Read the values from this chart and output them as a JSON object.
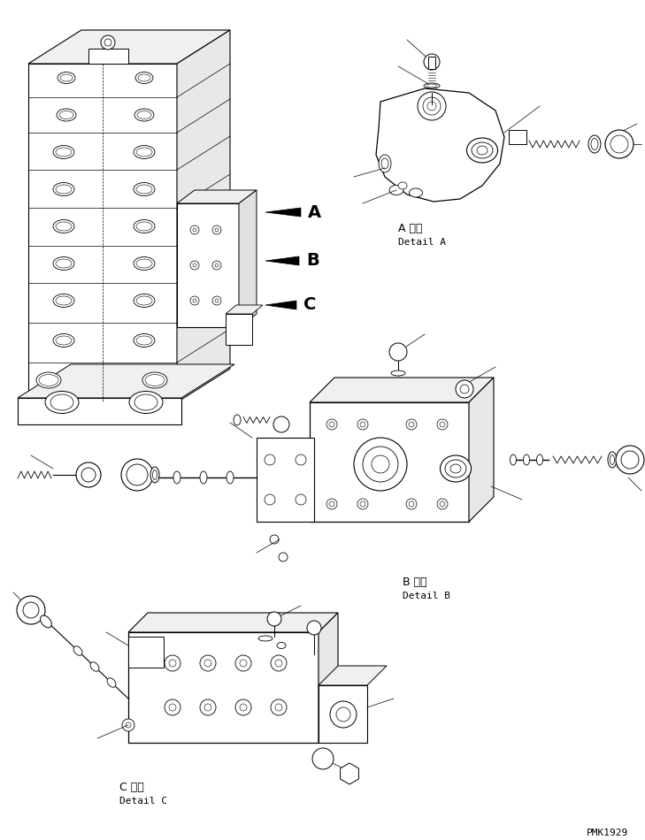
{
  "background_color": "#ffffff",
  "watermark": "PMK1929",
  "label_A_jp": "A 詳細",
  "label_A_en": "Detail A",
  "label_B_jp": "B 詳細",
  "label_B_en": "Detail B",
  "label_C_jp": "C 詳細",
  "label_C_en": "Detail C",
  "line_color": "#000000",
  "lw_main": 0.8,
  "lw_thin": 0.5,
  "lw_bold": 1.2
}
